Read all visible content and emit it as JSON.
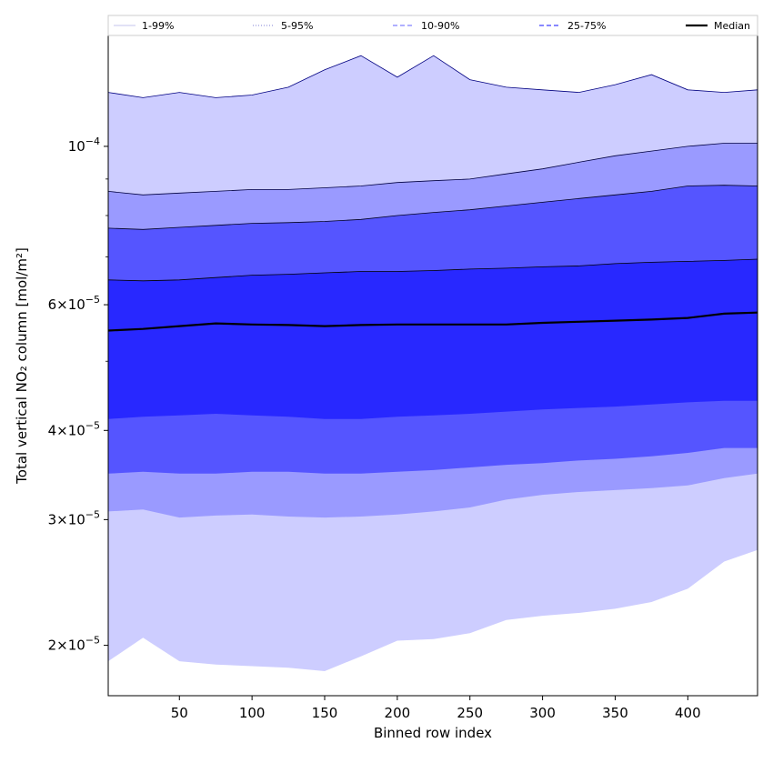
{
  "chart_data": {
    "type": "area",
    "xlabel": "Binned row index",
    "ylabel": "Total vertical NO₂ column [mol/m²]",
    "xlim": [
      1,
      448
    ],
    "ylim": [
      1.7e-05,
      0.000143
    ],
    "yscale": "log",
    "grid": false,
    "legend_position": "top",
    "x_ticks": [
      50,
      100,
      150,
      200,
      250,
      300,
      350,
      400
    ],
    "x_tick_labels": [
      "50",
      "100",
      "150",
      "200",
      "250",
      "300",
      "350",
      "400"
    ],
    "y_ticks": [
      2e-05,
      3e-05,
      4e-05,
      6e-05,
      0.0001
    ],
    "y_tick_labels": [
      {
        "mantissa": "2",
        "exp": "−5"
      },
      {
        "mantissa": "3",
        "exp": "−5"
      },
      {
        "mantissa": "4",
        "exp": "−5"
      },
      {
        "mantissa": "6",
        "exp": "−5"
      },
      {
        "mantissa": "",
        "exp": "−4"
      }
    ],
    "x": [
      1,
      25,
      50,
      75,
      100,
      125,
      150,
      175,
      200,
      225,
      250,
      275,
      300,
      325,
      350,
      375,
      400,
      425,
      448
    ],
    "bands": [
      {
        "name": "1-99%",
        "color": "#cdcdff",
        "line_color": "#000080",
        "lower": [
          1.9e-05,
          2.05e-05,
          1.9e-05,
          1.88e-05,
          1.87e-05,
          1.86e-05,
          1.84e-05,
          1.93e-05,
          2.03e-05,
          2.04e-05,
          2.08e-05,
          2.17e-05,
          2.2e-05,
          2.22e-05,
          2.25e-05,
          2.3e-05,
          2.4e-05,
          2.62e-05,
          2.72e-05
        ],
        "upper": [
          0.000119,
          0.000117,
          0.000119,
          0.000117,
          0.000118,
          0.000121,
          0.000128,
          0.000134,
          0.000125,
          0.000134,
          0.000124,
          0.000121,
          0.00012,
          0.000119,
          0.000122,
          0.000126,
          0.00012,
          0.000119,
          0.00012
        ]
      },
      {
        "name": "5-95%",
        "color": "#9a9aff",
        "line_color": "#000040",
        "lower": [
          3.08e-05,
          3.1e-05,
          3.02e-05,
          3.04e-05,
          3.05e-05,
          3.03e-05,
          3.02e-05,
          3.03e-05,
          3.05e-05,
          3.08e-05,
          3.12e-05,
          3.2e-05,
          3.25e-05,
          3.28e-05,
          3.3e-05,
          3.32e-05,
          3.35e-05,
          3.43e-05,
          3.48e-05
        ],
        "upper": [
          8.65e-05,
          8.55e-05,
          8.6e-05,
          8.65e-05,
          8.7e-05,
          8.7e-05,
          8.75e-05,
          8.8e-05,
          8.9e-05,
          8.95e-05,
          9e-05,
          9.15e-05,
          9.3e-05,
          9.5e-05,
          9.7e-05,
          9.85e-05,
          0.0001,
          0.000101,
          0.000101
        ]
      },
      {
        "name": "10-90%",
        "color": "#5555ff",
        "line_color": "#000020",
        "lower": [
          3.48e-05,
          3.5e-05,
          3.48e-05,
          3.48e-05,
          3.5e-05,
          3.5e-05,
          3.48e-05,
          3.48e-05,
          3.5e-05,
          3.52e-05,
          3.55e-05,
          3.58e-05,
          3.6e-05,
          3.63e-05,
          3.65e-05,
          3.68e-05,
          3.72e-05,
          3.78e-05,
          3.78e-05
        ],
        "upper": [
          7.68e-05,
          7.65e-05,
          7.7e-05,
          7.75e-05,
          7.8e-05,
          7.82e-05,
          7.85e-05,
          7.9e-05,
          8e-05,
          8.08e-05,
          8.15e-05,
          8.25e-05,
          8.35e-05,
          8.45e-05,
          8.55e-05,
          8.65e-05,
          8.8e-05,
          8.82e-05,
          8.8e-05
        ]
      },
      {
        "name": "25-75%",
        "color": "#2828ff",
        "line_color": "#000000",
        "lower": [
          4.15e-05,
          4.18e-05,
          4.2e-05,
          4.22e-05,
          4.2e-05,
          4.18e-05,
          4.15e-05,
          4.15e-05,
          4.18e-05,
          4.2e-05,
          4.22e-05,
          4.25e-05,
          4.28e-05,
          4.3e-05,
          4.32e-05,
          4.35e-05,
          4.38e-05,
          4.4e-05,
          4.4e-05
        ],
        "upper": [
          6.5e-05,
          6.48e-05,
          6.5e-05,
          6.55e-05,
          6.6e-05,
          6.62e-05,
          6.65e-05,
          6.68e-05,
          6.68e-05,
          6.7e-05,
          6.73e-05,
          6.75e-05,
          6.78e-05,
          6.8e-05,
          6.85e-05,
          6.88e-05,
          6.9e-05,
          6.92e-05,
          6.95e-05
        ]
      }
    ],
    "median": {
      "name": "Median",
      "color": "#000000",
      "values": [
        5.52e-05,
        5.55e-05,
        5.6e-05,
        5.65e-05,
        5.63e-05,
        5.62e-05,
        5.6e-05,
        5.62e-05,
        5.63e-05,
        5.63e-05,
        5.63e-05,
        5.63e-05,
        5.66e-05,
        5.68e-05,
        5.7e-05,
        5.72e-05,
        5.75e-05,
        5.83e-05,
        5.85e-05
      ]
    },
    "legend": [
      {
        "label": "1-99%",
        "color": "#d0d0f0",
        "style": "solid"
      },
      {
        "label": "5-95%",
        "color": "#9999dd",
        "style": "dotted"
      },
      {
        "label": "10-90%",
        "color": "#8080ff",
        "style": "dashed"
      },
      {
        "label": "25-75%",
        "color": "#4040ff",
        "style": "dashed"
      },
      {
        "label": "Median",
        "color": "#000000",
        "style": "solid"
      }
    ]
  }
}
